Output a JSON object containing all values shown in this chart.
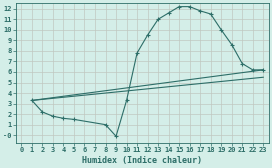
{
  "xlabel": "Humidex (Indice chaleur)",
  "background_color": "#d4eee8",
  "grid_color": "#c0c8c0",
  "line_color": "#2d6e68",
  "xlim": [
    -0.5,
    23.5
  ],
  "ylim": [
    -0.7,
    12.5
  ],
  "xticks": [
    0,
    1,
    2,
    3,
    4,
    5,
    6,
    7,
    8,
    9,
    10,
    11,
    12,
    13,
    14,
    15,
    16,
    17,
    18,
    19,
    20,
    21,
    22,
    23
  ],
  "yticks": [
    0,
    1,
    2,
    3,
    4,
    5,
    6,
    7,
    8,
    9,
    10,
    11,
    12
  ],
  "ytick_labels": [
    "-0",
    "1",
    "2",
    "3",
    "4",
    "5",
    "6",
    "7",
    "8",
    "9",
    "10",
    "11",
    "12"
  ],
  "line1_x": [
    1,
    2,
    3,
    4,
    5,
    8,
    9,
    10,
    11,
    12,
    13,
    14,
    15,
    16,
    17,
    18,
    19,
    20,
    21,
    22,
    23
  ],
  "line1_y": [
    3.3,
    2.2,
    1.8,
    1.6,
    1.5,
    1.0,
    -0.1,
    3.3,
    7.8,
    9.5,
    11.0,
    11.6,
    12.2,
    12.2,
    11.8,
    11.5,
    10.0,
    8.6,
    6.8,
    6.2,
    6.2
  ],
  "line2_x": [
    1,
    23
  ],
  "line2_y": [
    3.3,
    6.2
  ],
  "line3_x": [
    1,
    23
  ],
  "line3_y": [
    3.3,
    5.5
  ],
  "figwidth": 2.72,
  "figheight": 1.68,
  "dpi": 100
}
